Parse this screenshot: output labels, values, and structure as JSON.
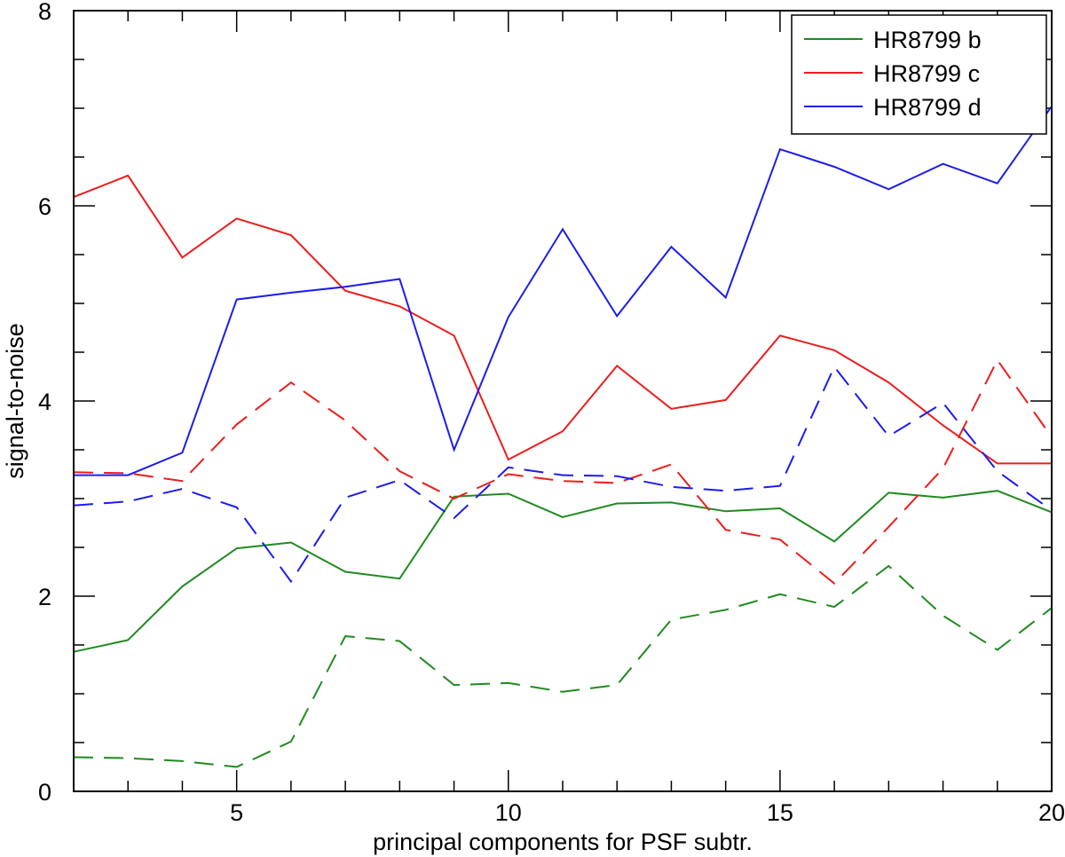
{
  "chart_data": {
    "type": "line",
    "xlabel": "principal components for PSF subtr.",
    "ylabel": "signal-to-noise",
    "xlim": [
      2,
      20
    ],
    "ylim": [
      0,
      8
    ],
    "x_ticks": [
      5,
      10,
      15,
      20
    ],
    "y_ticks": [
      0,
      2,
      4,
      6,
      8
    ],
    "x_minor_step": 1,
    "y_minor_step": 0.5,
    "grid": false,
    "legend_position": "top-right",
    "x": [
      2,
      3,
      4,
      5,
      6,
      7,
      8,
      9,
      10,
      11,
      12,
      13,
      14,
      15,
      16,
      17,
      18,
      19,
      20
    ],
    "series": [
      {
        "name": "HR8799 b",
        "color": "#1f8a1f",
        "style": "solid",
        "values": [
          1.43,
          1.55,
          2.1,
          2.49,
          2.55,
          2.25,
          2.18,
          3.02,
          3.05,
          2.81,
          2.95,
          2.96,
          2.87,
          2.9,
          2.56,
          3.06,
          3.01,
          3.08,
          2.86
        ]
      },
      {
        "name": "HR8799 c",
        "color": "#ee1c1c",
        "style": "solid",
        "values": [
          6.09,
          6.31,
          5.47,
          5.87,
          5.7,
          5.13,
          4.97,
          4.67,
          3.4,
          3.69,
          4.36,
          3.92,
          4.01,
          4.67,
          4.52,
          4.19,
          3.75,
          3.36,
          3.36
        ]
      },
      {
        "name": "HR8799 d",
        "color": "#1c1cee",
        "style": "solid",
        "values": [
          3.24,
          3.24,
          3.47,
          5.04,
          5.11,
          5.17,
          5.25,
          3.5,
          4.86,
          5.76,
          4.87,
          5.58,
          5.06,
          6.58,
          6.4,
          6.17,
          6.43,
          6.23,
          7.02
        ]
      },
      {
        "color": "#1f8a1f",
        "style": "dashed",
        "values": [
          0.35,
          0.34,
          0.31,
          0.25,
          0.51,
          1.59,
          1.54,
          1.09,
          1.11,
          1.02,
          1.09,
          1.76,
          1.86,
          2.02,
          1.89,
          2.31,
          1.8,
          1.45,
          1.88
        ]
      },
      {
        "color": "#ee1c1c",
        "style": "dashed",
        "values": [
          3.27,
          3.26,
          3.18,
          3.76,
          4.19,
          3.8,
          3.28,
          3.0,
          3.25,
          3.18,
          3.16,
          3.35,
          2.68,
          2.58,
          2.13,
          2.71,
          3.31,
          4.42,
          3.63
        ]
      },
      {
        "color": "#1c1cee",
        "style": "dashed",
        "values": [
          2.93,
          2.97,
          3.1,
          2.91,
          2.15,
          3.01,
          3.19,
          2.8,
          3.32,
          3.24,
          3.23,
          3.12,
          3.08,
          3.13,
          4.35,
          3.64,
          3.98,
          3.28,
          2.88
        ]
      }
    ]
  }
}
